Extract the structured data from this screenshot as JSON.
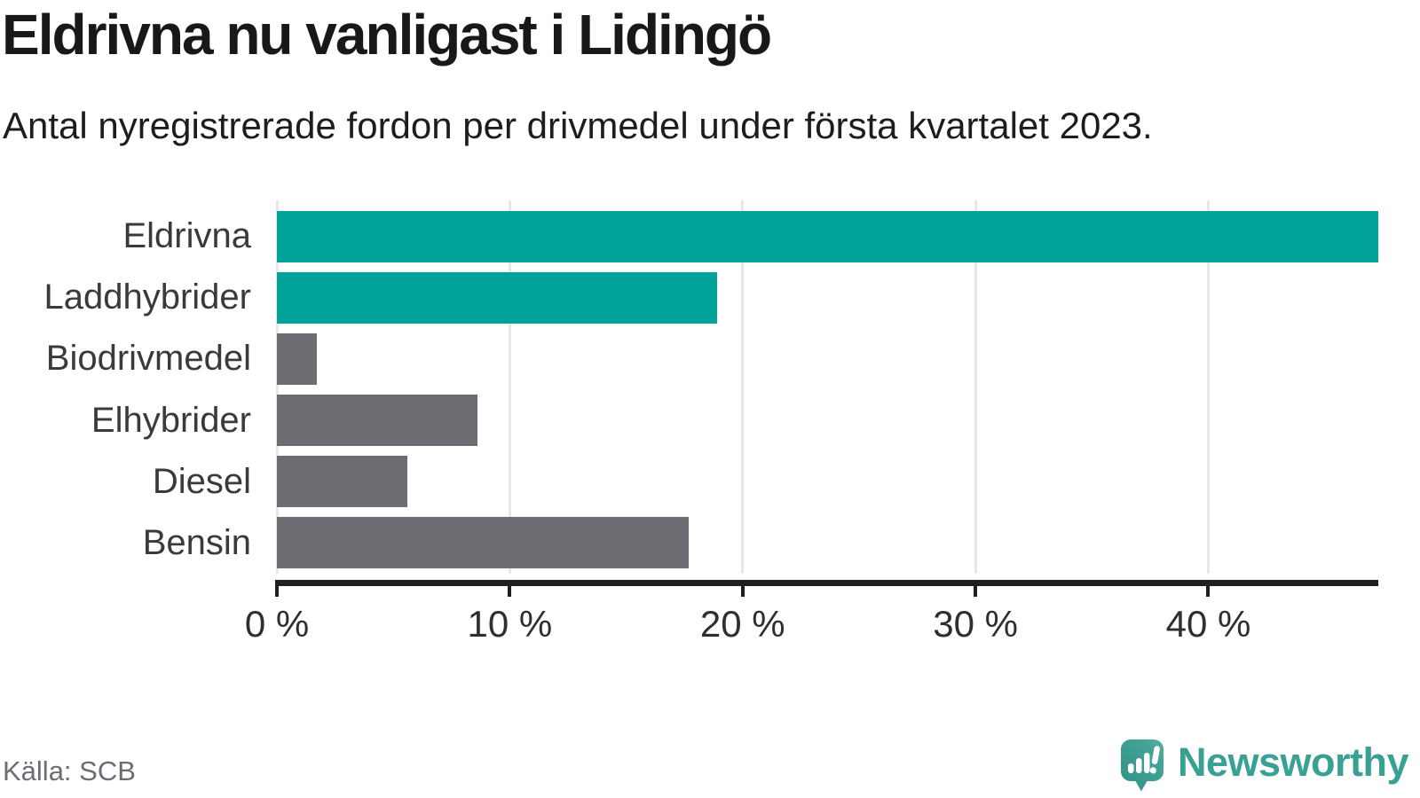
{
  "header": {
    "title": "Eldrivna nu vanligast i Lidingö",
    "subtitle": "Antal nyregistrerade fordon per drivmedel under första kvartalet 2023."
  },
  "chart_data": {
    "type": "bar",
    "orientation": "horizontal",
    "title": "Eldrivna nu vanligast i Lidingö",
    "subtitle": "Antal nyregistrerade fordon per drivmedel under första kvartalet 2023.",
    "categories": [
      "Eldrivna",
      "Laddhybrider",
      "Biodrivmedel",
      "Elhybrider",
      "Diesel",
      "Bensin"
    ],
    "values": [
      47.3,
      18.9,
      1.7,
      8.6,
      5.6,
      17.7
    ],
    "unit": "%",
    "bar_colors": [
      "#00a29a",
      "#00a29a",
      "#6c6c72",
      "#6c6c72",
      "#6c6c72",
      "#6c6c72"
    ],
    "xlim": [
      0,
      47.3
    ],
    "x_ticks": [
      {
        "value": 0,
        "label": "0 %"
      },
      {
        "value": 10,
        "label": "10 %"
      },
      {
        "value": 20,
        "label": "20 %"
      },
      {
        "value": 30,
        "label": "30 %"
      },
      {
        "value": 40,
        "label": "40 %"
      }
    ],
    "grid": true,
    "legend": false
  },
  "footer": {
    "source": "Källa: SCB",
    "brand_name": "Newsworthy"
  },
  "colors": {
    "bar_teal": "#00a29a",
    "bar_gray": "#6c6c72",
    "brand_teal": "#38a193",
    "logo_teal_dark": "#2f9185",
    "logo_teal_light": "#55b3a4",
    "gridline": "#e7e7e5",
    "axis": "#1f1f1f"
  },
  "icons": {
    "brand_logo": "newsworthy-speech-bubble-bar-chart-icon"
  }
}
